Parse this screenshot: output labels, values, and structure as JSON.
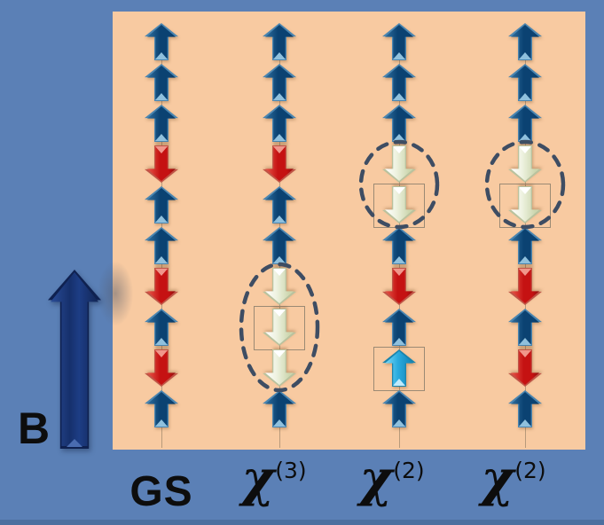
{
  "figure": {
    "description": "Spin-chain diagram: ground state and magnon excitations probed by chi(3) and chi(2)",
    "field_label": "B"
  },
  "colors": {
    "background": "#5b80b6",
    "panel": "#f8caa1",
    "bottom_strip": "#4c6f9f",
    "label_text": "#0d0d0d",
    "ellipse": "#3e4d63",
    "box": "#9b8a74",
    "navy_outer": "#4a85b0",
    "navy_core_a": "#2f6f9f",
    "navy_core_b": "#0b4272",
    "navy_notch": "#8fc0dd",
    "red_outer": "#c05446",
    "red_core_a": "#e8574a",
    "red_core_b": "#c51212",
    "red_notch": "#f0968a",
    "cream_outer": "#b9c29e",
    "cream_core_a": "#ffffff",
    "cream_core_b": "#ccd6ae",
    "cream_notch": "#ffffff",
    "cyan_outer": "#1a84ad",
    "cyan_core_a": "#7edcf8",
    "cyan_core_b": "#1488bb",
    "cyan_notch": "#bfeafb",
    "field_outer": "#0f2150",
    "field_core_a": "#2a4c96",
    "field_core_b": "#16306c"
  },
  "columns": [
    {
      "id": "gs",
      "label": {
        "text": "GS",
        "sup": ""
      },
      "arrows": [
        {
          "dir": "up",
          "color": "navy"
        },
        {
          "dir": "up",
          "color": "navy"
        },
        {
          "dir": "up",
          "color": "navy"
        },
        {
          "dir": "down",
          "color": "red"
        },
        {
          "dir": "up",
          "color": "navy"
        },
        {
          "dir": "up",
          "color": "navy"
        },
        {
          "dir": "down",
          "color": "red"
        },
        {
          "dir": "up",
          "color": "navy"
        },
        {
          "dir": "down",
          "color": "red"
        },
        {
          "dir": "up",
          "color": "navy"
        }
      ],
      "ellipses": [],
      "boxes": []
    },
    {
      "id": "chi3",
      "label": {
        "text": "χ",
        "sup": "(3)"
      },
      "arrows": [
        {
          "dir": "up",
          "color": "navy"
        },
        {
          "dir": "up",
          "color": "navy"
        },
        {
          "dir": "up",
          "color": "navy"
        },
        {
          "dir": "down",
          "color": "red"
        },
        {
          "dir": "up",
          "color": "navy"
        },
        {
          "dir": "up",
          "color": "navy"
        },
        {
          "dir": "down",
          "color": "cream"
        },
        {
          "dir": "down",
          "color": "cream"
        },
        {
          "dir": "down",
          "color": "cream"
        },
        {
          "dir": "up",
          "color": "navy"
        }
      ],
      "ellipses": [
        {
          "from": 6,
          "to": 8
        }
      ],
      "boxes": [
        {
          "row": 7
        }
      ]
    },
    {
      "id": "chi2a",
      "label": {
        "text": "χ",
        "sup": "(2)"
      },
      "arrows": [
        {
          "dir": "up",
          "color": "navy"
        },
        {
          "dir": "up",
          "color": "navy"
        },
        {
          "dir": "up",
          "color": "navy"
        },
        {
          "dir": "down",
          "color": "cream"
        },
        {
          "dir": "down",
          "color": "cream"
        },
        {
          "dir": "up",
          "color": "navy"
        },
        {
          "dir": "down",
          "color": "red"
        },
        {
          "dir": "up",
          "color": "navy"
        },
        {
          "dir": "up",
          "color": "cyan"
        },
        {
          "dir": "up",
          "color": "navy"
        }
      ],
      "ellipses": [
        {
          "from": 3,
          "to": 4
        }
      ],
      "boxes": [
        {
          "row": 4
        },
        {
          "row": 8
        }
      ]
    },
    {
      "id": "chi2b",
      "label": {
        "text": "χ",
        "sup": "(2)"
      },
      "arrows": [
        {
          "dir": "up",
          "color": "navy"
        },
        {
          "dir": "up",
          "color": "navy"
        },
        {
          "dir": "up",
          "color": "navy"
        },
        {
          "dir": "down",
          "color": "cream"
        },
        {
          "dir": "down",
          "color": "cream"
        },
        {
          "dir": "up",
          "color": "navy"
        },
        {
          "dir": "down",
          "color": "red"
        },
        {
          "dir": "up",
          "color": "navy"
        },
        {
          "dir": "down",
          "color": "red"
        },
        {
          "dir": "up",
          "color": "navy"
        }
      ],
      "ellipses": [
        {
          "from": 3,
          "to": 4
        }
      ],
      "boxes": [
        {
          "row": 4
        }
      ]
    }
  ]
}
